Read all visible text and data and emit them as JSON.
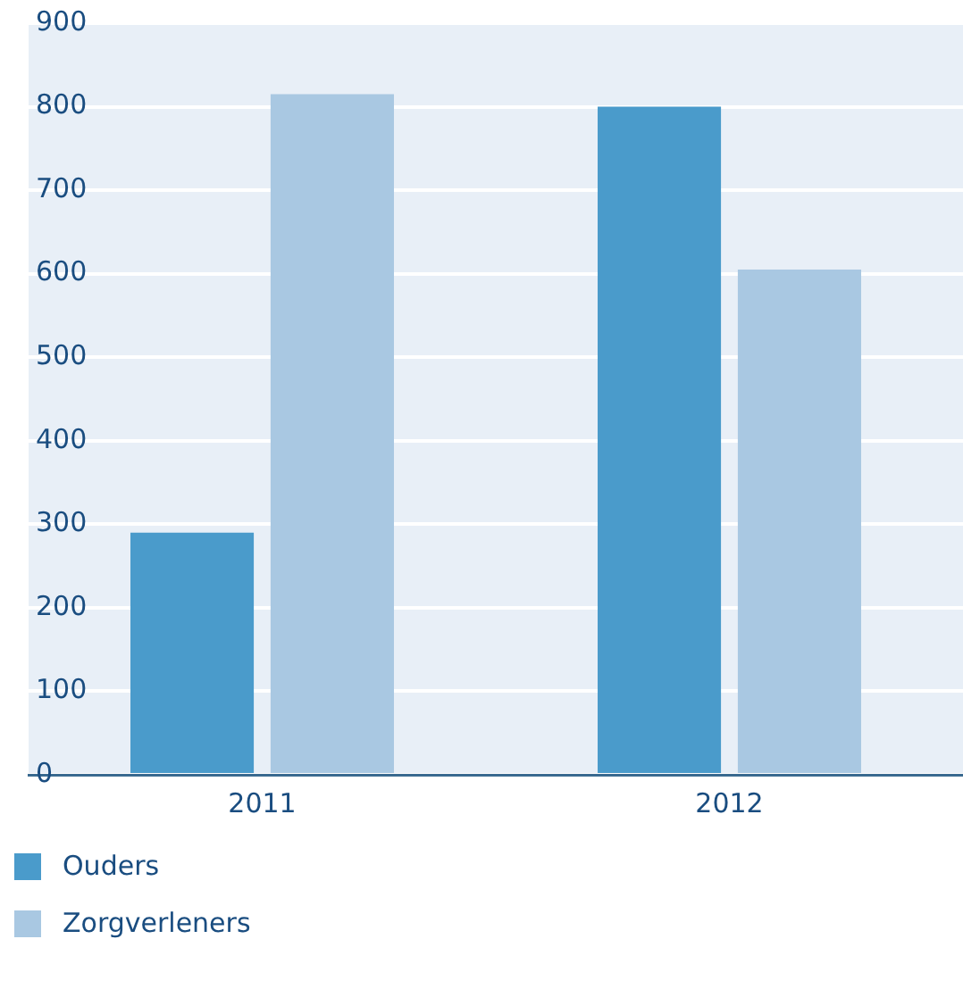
{
  "chart_data": {
    "type": "bar",
    "categories": [
      "2011",
      "2012"
    ],
    "series": [
      {
        "name": "Ouders",
        "color": "#4a9bcb",
        "values": [
          290,
          800
        ]
      },
      {
        "name": "Zorgverleners",
        "color": "#a9c8e2",
        "values": [
          815,
          605
        ]
      }
    ],
    "ylim": [
      0,
      900
    ],
    "yticks": [
      0,
      100,
      200,
      300,
      400,
      500,
      600,
      700,
      800,
      900
    ],
    "grid": "y",
    "legend": "bottom"
  }
}
